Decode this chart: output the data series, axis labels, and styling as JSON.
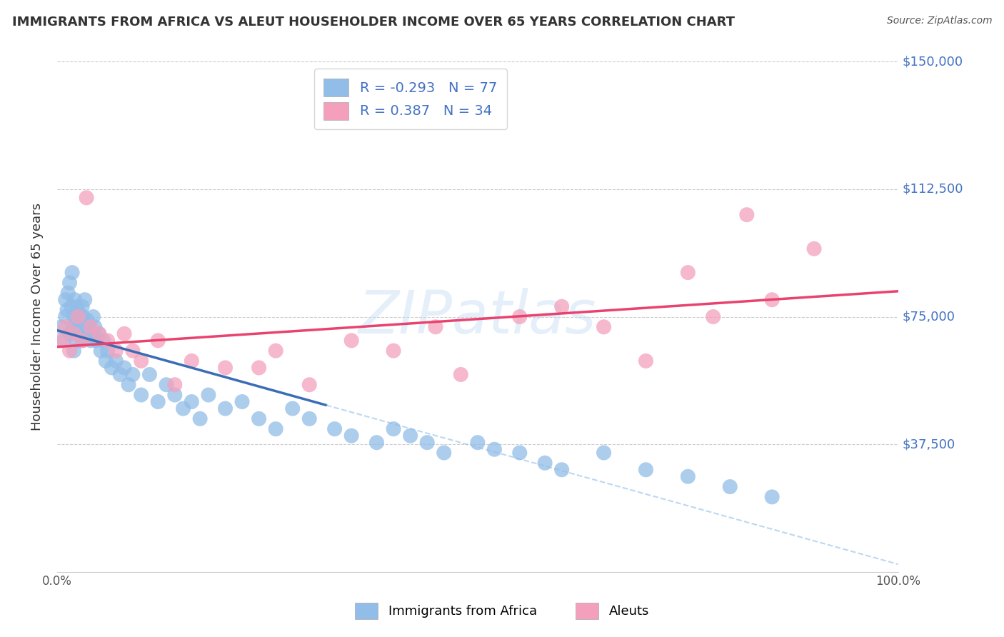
{
  "title": "IMMIGRANTS FROM AFRICA VS ALEUT HOUSEHOLDER INCOME OVER 65 YEARS CORRELATION CHART",
  "source": "Source: ZipAtlas.com",
  "ylabel": "Householder Income Over 65 years",
  "xlim": [
    0,
    100
  ],
  "ylim": [
    0,
    150000
  ],
  "yticks": [
    0,
    37500,
    75000,
    112500,
    150000
  ],
  "ytick_labels": [
    "",
    "$37,500",
    "$75,000",
    "$112,500",
    "$150,000"
  ],
  "xtick_labels": [
    "0.0%",
    "100.0%"
  ],
  "watermark": "ZIPatlas",
  "series": [
    {
      "name": "Immigrants from Africa",
      "R": -0.293,
      "N": 77,
      "color": "#92bde8",
      "trend_color": "#3a6db5",
      "trend_dashed_color": "#92bde8",
      "x": [
        0.5,
        0.8,
        1.0,
        1.0,
        1.2,
        1.3,
        1.5,
        1.5,
        1.7,
        1.8,
        2.0,
        2.0,
        2.0,
        2.1,
        2.2,
        2.3,
        2.4,
        2.5,
        2.6,
        2.7,
        2.8,
        3.0,
        3.0,
        3.1,
        3.2,
        3.3,
        3.5,
        3.6,
        3.8,
        4.0,
        4.2,
        4.3,
        4.5,
        4.7,
        5.0,
        5.2,
        5.5,
        5.8,
        6.0,
        6.5,
        7.0,
        7.5,
        8.0,
        8.5,
        9.0,
        10.0,
        11.0,
        12.0,
        13.0,
        14.0,
        15.0,
        16.0,
        17.0,
        18.0,
        20.0,
        22.0,
        24.0,
        26.0,
        28.0,
        30.0,
        33.0,
        35.0,
        38.0,
        40.0,
        42.0,
        44.0,
        46.0,
        50.0,
        52.0,
        55.0,
        58.0,
        60.0,
        65.0,
        70.0,
        75.0,
        80.0,
        85.0
      ],
      "y": [
        72000,
        68000,
        80000,
        75000,
        77000,
        82000,
        70000,
        85000,
        78000,
        88000,
        72000,
        75000,
        65000,
        80000,
        73000,
        68000,
        78000,
        72000,
        76000,
        70000,
        74000,
        78000,
        68000,
        75000,
        72000,
        80000,
        70000,
        74000,
        72000,
        68000,
        70000,
        75000,
        72000,
        68000,
        70000,
        65000,
        68000,
        62000,
        65000,
        60000,
        62000,
        58000,
        60000,
        55000,
        58000,
        52000,
        58000,
        50000,
        55000,
        52000,
        48000,
        50000,
        45000,
        52000,
        48000,
        50000,
        45000,
        42000,
        48000,
        45000,
        42000,
        40000,
        38000,
        42000,
        40000,
        38000,
        35000,
        38000,
        36000,
        35000,
        32000,
        30000,
        35000,
        30000,
        28000,
        25000,
        22000
      ]
    },
    {
      "name": "Aleuts",
      "R": 0.387,
      "N": 34,
      "color": "#f4a0bc",
      "trend_color": "#e8436e",
      "x": [
        0.5,
        1.0,
        1.5,
        2.0,
        2.5,
        3.0,
        3.5,
        4.0,
        5.0,
        6.0,
        7.0,
        8.0,
        9.0,
        10.0,
        12.0,
        14.0,
        16.0,
        20.0,
        24.0,
        26.0,
        30.0,
        35.0,
        40.0,
        45.0,
        48.0,
        55.0,
        60.0,
        65.0,
        70.0,
        75.0,
        78.0,
        82.0,
        85.0,
        90.0
      ],
      "y": [
        68000,
        72000,
        65000,
        70000,
        75000,
        68000,
        110000,
        72000,
        70000,
        68000,
        65000,
        70000,
        65000,
        62000,
        68000,
        55000,
        62000,
        60000,
        60000,
        65000,
        55000,
        68000,
        65000,
        72000,
        58000,
        75000,
        78000,
        72000,
        62000,
        88000,
        75000,
        105000,
        80000,
        95000
      ]
    }
  ],
  "blue_solid_xmax": 32,
  "legend_r_n": [
    {
      "R": -0.293,
      "N": 77
    },
    {
      "R": 0.387,
      "N": 34
    }
  ]
}
